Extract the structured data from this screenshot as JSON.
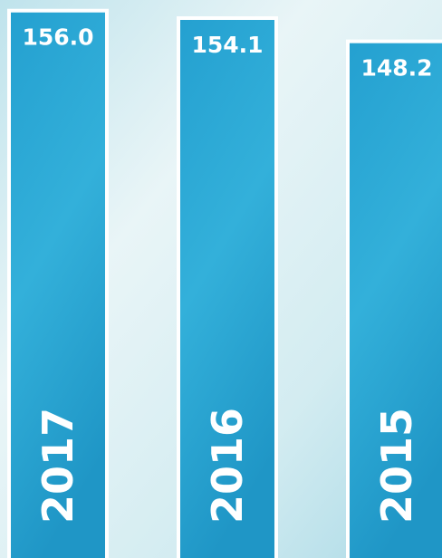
{
  "chart_data": {
    "type": "bar",
    "categories": [
      "2017",
      "2016",
      "2015"
    ],
    "values": [
      156.0,
      154.1,
      148.2
    ],
    "value_labels": [
      "156.0",
      "154.1",
      "148.2"
    ],
    "color": "#2aa6d3",
    "ylim": [
      17,
      158.7
    ]
  }
}
